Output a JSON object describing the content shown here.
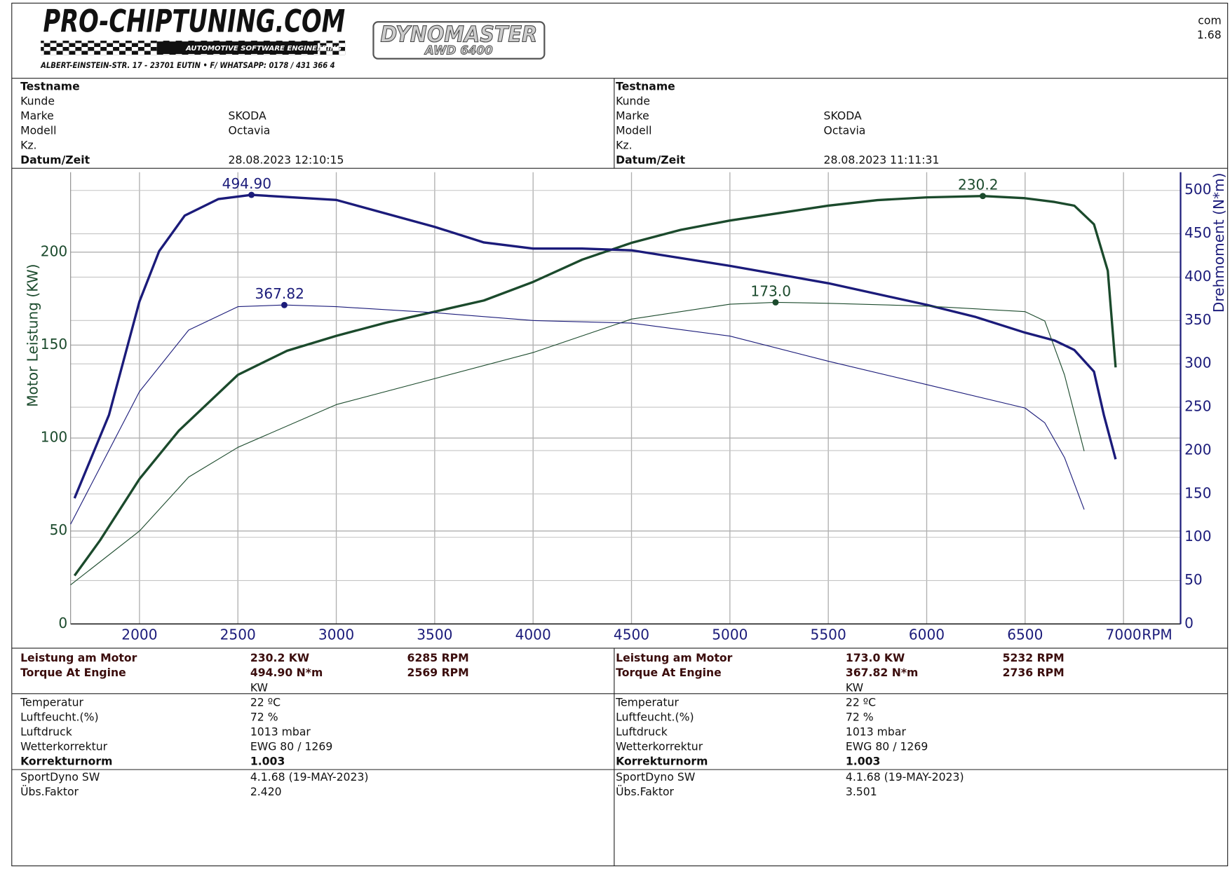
{
  "header": {
    "logo": "PRO-CHIPTUNING.COM",
    "tagline": "AUTOMOTIVE SOFTWARE ENGINEERING",
    "address": "ALBERT-EINSTEIN-STR. 17 - 23701 EUTIN • F/ WHATSAPP: 0178 / 431 366 4",
    "dyno": "DYNOMASTER",
    "dyno_model": "AWD 6400",
    "corner": [
      "com",
      "1.68"
    ]
  },
  "runs": [
    {
      "info": [
        [
          "Testname"
        ],
        [
          "Kunde"
        ],
        [
          "Marke",
          "SKODA"
        ],
        [
          "Modell",
          "Octavia"
        ],
        [
          "Kz."
        ],
        [
          "Datum/Zeit",
          "28.08.2023 12:10:15"
        ]
      ],
      "results": [
        [
          "Leistung am Motor",
          "230.2 KW",
          "6285 RPM"
        ],
        [
          "Torque At Engine",
          "494.90 N*m",
          "2569 RPM"
        ]
      ],
      "results_unit": "KW",
      "conditions": [
        [
          "Temperatur",
          "22 ºC"
        ],
        [
          "Luftfeucht.(%)",
          "72 %"
        ],
        [
          "Luftdruck",
          "1013 mbar"
        ],
        [
          "Wetterkorrektur",
          "EWG 80 / 1269"
        ],
        [
          "Korrekturnorm",
          "1.003"
        ]
      ],
      "software": [
        [
          "SportDyno SW",
          "4.1.68 (19-MAY-2023)"
        ],
        [
          "Übs.Faktor",
          "2.420"
        ]
      ]
    },
    {
      "info": [
        [
          "Testname"
        ],
        [
          "Kunde"
        ],
        [
          "Marke",
          "SKODA"
        ],
        [
          "Modell",
          "Octavia"
        ],
        [
          "Kz."
        ],
        [
          "Datum/Zeit",
          "28.08.2023 11:11:31"
        ]
      ],
      "results": [
        [
          "Leistung am Motor",
          "173.0 KW",
          "5232 RPM"
        ],
        [
          "Torque At Engine",
          "367.82 N*m",
          "2736 RPM"
        ]
      ],
      "results_unit": "KW",
      "conditions": [
        [
          "Temperatur",
          "22 ºC"
        ],
        [
          "Luftfeucht.(%)",
          "72 %"
        ],
        [
          "Luftdruck",
          "1013 mbar"
        ],
        [
          "Wetterkorrektur",
          "EWG 80 / 1269"
        ],
        [
          "Korrekturnorm",
          "1.003"
        ]
      ],
      "software": [
        [
          "SportDyno SW",
          "4.1.68 (19-MAY-2023)"
        ],
        [
          "Übs.Faktor",
          "3.501"
        ]
      ]
    }
  ],
  "chart_data": {
    "type": "line",
    "xlabel": "RPM",
    "ylabel": "Motor Leistung (KW)",
    "y2label": "Drehmoment (N*m)",
    "xlim": [
      1650,
      7290
    ],
    "ylim": [
      0,
      243
    ],
    "y2lim": [
      0,
      521
    ],
    "xticks": [
      2000,
      2500,
      3000,
      3500,
      4000,
      4500,
      5000,
      5500,
      6000,
      6500,
      7000
    ],
    "yticks": [
      0,
      50,
      100,
      150,
      200
    ],
    "y2ticks": [
      0,
      50,
      100,
      150,
      200,
      250,
      300,
      350,
      400,
      450,
      500
    ],
    "grid": true,
    "series": [
      {
        "color": "#1b4a2c",
        "linewidth": 3,
        "x": [
          1670,
          1800,
          2000,
          2200,
          2500,
          2750,
          3000,
          3250,
          3500,
          3750,
          4000,
          4250,
          4500,
          4750,
          5000,
          5250,
          5500,
          5750,
          6000,
          6285,
          6500,
          6650,
          6750,
          6850,
          6920,
          6960
        ],
        "values": [
          26,
          45,
          78,
          104,
          134,
          147,
          155,
          162,
          168,
          174,
          184,
          196,
          205,
          212,
          217,
          221,
          225,
          228,
          229.5,
          230.2,
          229,
          227,
          225,
          215,
          190,
          138
        ]
      },
      {
        "color": "#1b1b7a",
        "linewidth": 3,
        "axis": "y2",
        "x": [
          1670,
          1845,
          2000,
          2100,
          2230,
          2400,
          2569,
          3000,
          3500,
          3750,
          4000,
          4250,
          4500,
          5000,
          5500,
          6000,
          6250,
          6500,
          6650,
          6750,
          6850,
          6900,
          6960
        ],
        "values": [
          145,
          241,
          372,
          430,
          471,
          490,
          494.9,
          489,
          458,
          440,
          433,
          433,
          431,
          413,
          393,
          368,
          354,
          336,
          327,
          316,
          291,
          241,
          190
        ]
      },
      {
        "color": "#1b4a2c",
        "linewidth": 1,
        "x": [
          1650,
          2000,
          2250,
          2500,
          3000,
          3500,
          4000,
          4500,
          5000,
          5232,
          5500,
          6000,
          6500,
          6600,
          6700,
          6800
        ],
        "values": [
          21,
          50,
          79,
          95,
          118,
          132,
          146,
          164,
          172,
          173.0,
          172.5,
          171,
          168,
          163,
          134,
          93
        ]
      },
      {
        "color": "#1b1b7a",
        "linewidth": 1,
        "axis": "y2",
        "x": [
          1650,
          2000,
          2250,
          2500,
          2736,
          3000,
          3500,
          4000,
          4500,
          5000,
          5500,
          6000,
          6500,
          6600,
          6700,
          6800
        ],
        "values": [
          115,
          268,
          339,
          366,
          367.82,
          366,
          359,
          350,
          347,
          332,
          303,
          276,
          249,
          232,
          192,
          132
        ]
      }
    ],
    "annotations": [
      {
        "label": "494.90",
        "x": 2569,
        "y": 494.9,
        "axis": "y2",
        "color": "#1b1b7a"
      },
      {
        "label": "230.2",
        "x": 6285,
        "y": 230.2,
        "color": "#1b4a2c"
      },
      {
        "label": "367.82",
        "x": 2736,
        "y": 367.82,
        "axis": "y2",
        "color": "#1b1b7a"
      },
      {
        "label": "173.0",
        "x": 5232,
        "y": 173.0,
        "color": "#1b4a2c"
      }
    ]
  }
}
